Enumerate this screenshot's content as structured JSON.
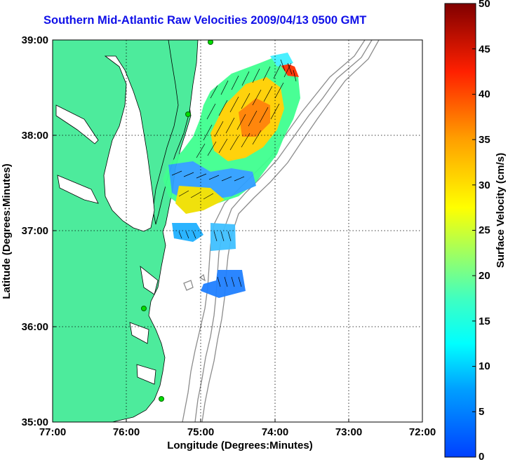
{
  "title": "Southern Mid-Atlantic Raw Velocities 2009/04/13 0500 GMT",
  "x_axis": {
    "label": "Longitude (Degrees:Minutes)",
    "ticks": [
      "77:00",
      "76:00",
      "75:00",
      "74:00",
      "73:00",
      "72:00"
    ],
    "range": [
      -77,
      -72
    ]
  },
  "y_axis": {
    "label": "Latitude (Degrees:Minutes)",
    "ticks": [
      "39:00",
      "38:00",
      "37:00",
      "36:00",
      "35:00"
    ],
    "range": [
      35,
      39
    ]
  },
  "colorbar": {
    "label": "Surface Velocity (cm/s)",
    "ticks": [
      "0",
      "5",
      "10",
      "15",
      "20",
      "25",
      "30",
      "35",
      "40",
      "45",
      "50"
    ],
    "range": [
      0,
      50
    ]
  },
  "colors": {
    "land": "#4deb9c",
    "water": "#ffffff",
    "title": "#1010e8",
    "bathymetry": "#8c8c8c",
    "station": "#00dd00"
  }
}
